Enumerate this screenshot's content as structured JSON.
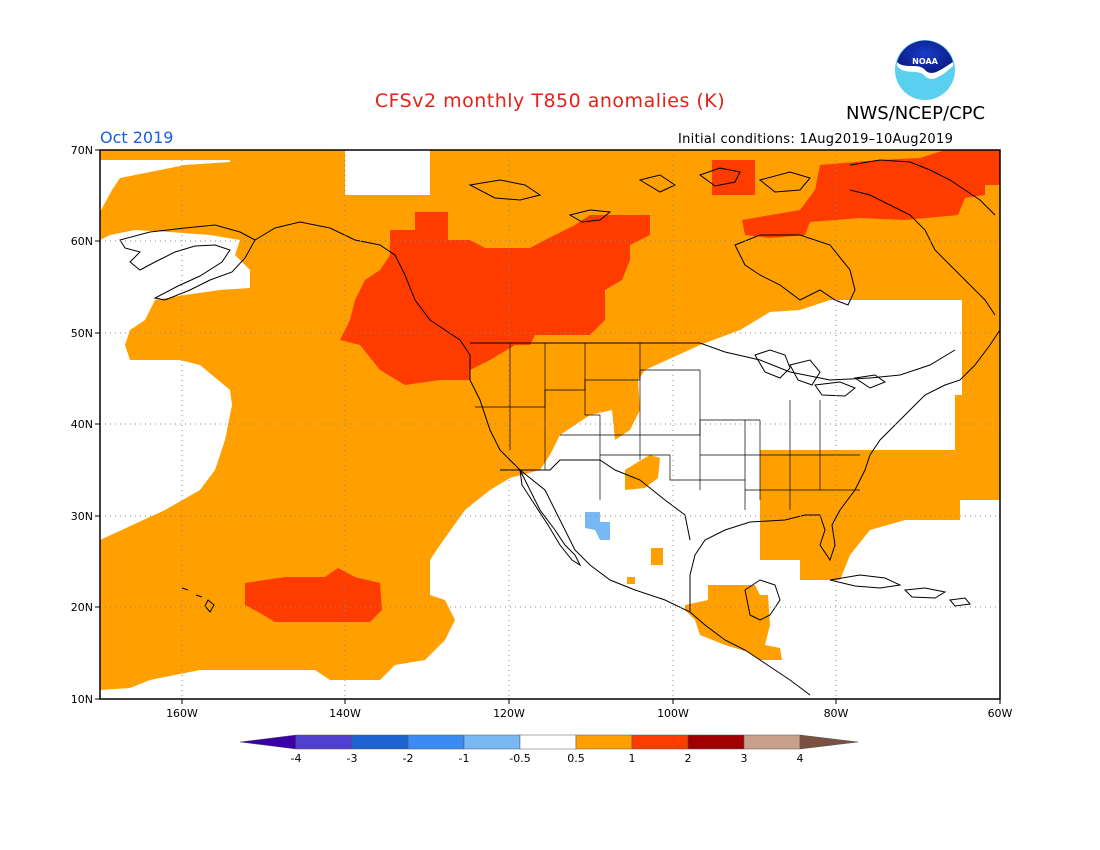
{
  "title": "CFSv2 monthly T850 anomalies (K)",
  "organization": "NWS/NCEP/CPC",
  "logo_text": "NOAA",
  "period_label": "Oct 2019",
  "initial_conditions": "Initial conditions: 1Aug2019–10Aug2019",
  "map": {
    "lon_range": [
      -170,
      -60
    ],
    "lat_range": [
      10,
      70
    ],
    "lat_labels": [
      "10N",
      "20N",
      "30N",
      "40N",
      "50N",
      "60N",
      "70N"
    ],
    "lon_labels": [
      "160W",
      "140W",
      "120W",
      "100W",
      "80W",
      "60W"
    ],
    "grid": "dotted"
  },
  "colorbar": {
    "bins": [
      "-4",
      "-3",
      "-2",
      "-1",
      "-0.5",
      "0.5",
      "1",
      "2",
      "3",
      "4"
    ],
    "colors": {
      "below_-4": "#3a00a8",
      "-4_-3": "#5040d0",
      "-3_-2": "#1e64d0",
      "-2_-1": "#3a8cf0",
      "-1_-0.5": "#78b8f5",
      "-0.5_0.5": "#ffffff",
      "0.5_1": "#ffa000",
      "1_2": "#ff3c00",
      "2_3": "#a00000",
      "3_4": "#c8a08c",
      "above_4": "#7a5040"
    }
  },
  "colors": {
    "title": "#e8201a",
    "period": "#1a5ee0",
    "anomaly_0.5_1": "#ffa000",
    "anomaly_1_2": "#ff3c00",
    "anomaly_-1_-0.5": "#78b8f5"
  }
}
